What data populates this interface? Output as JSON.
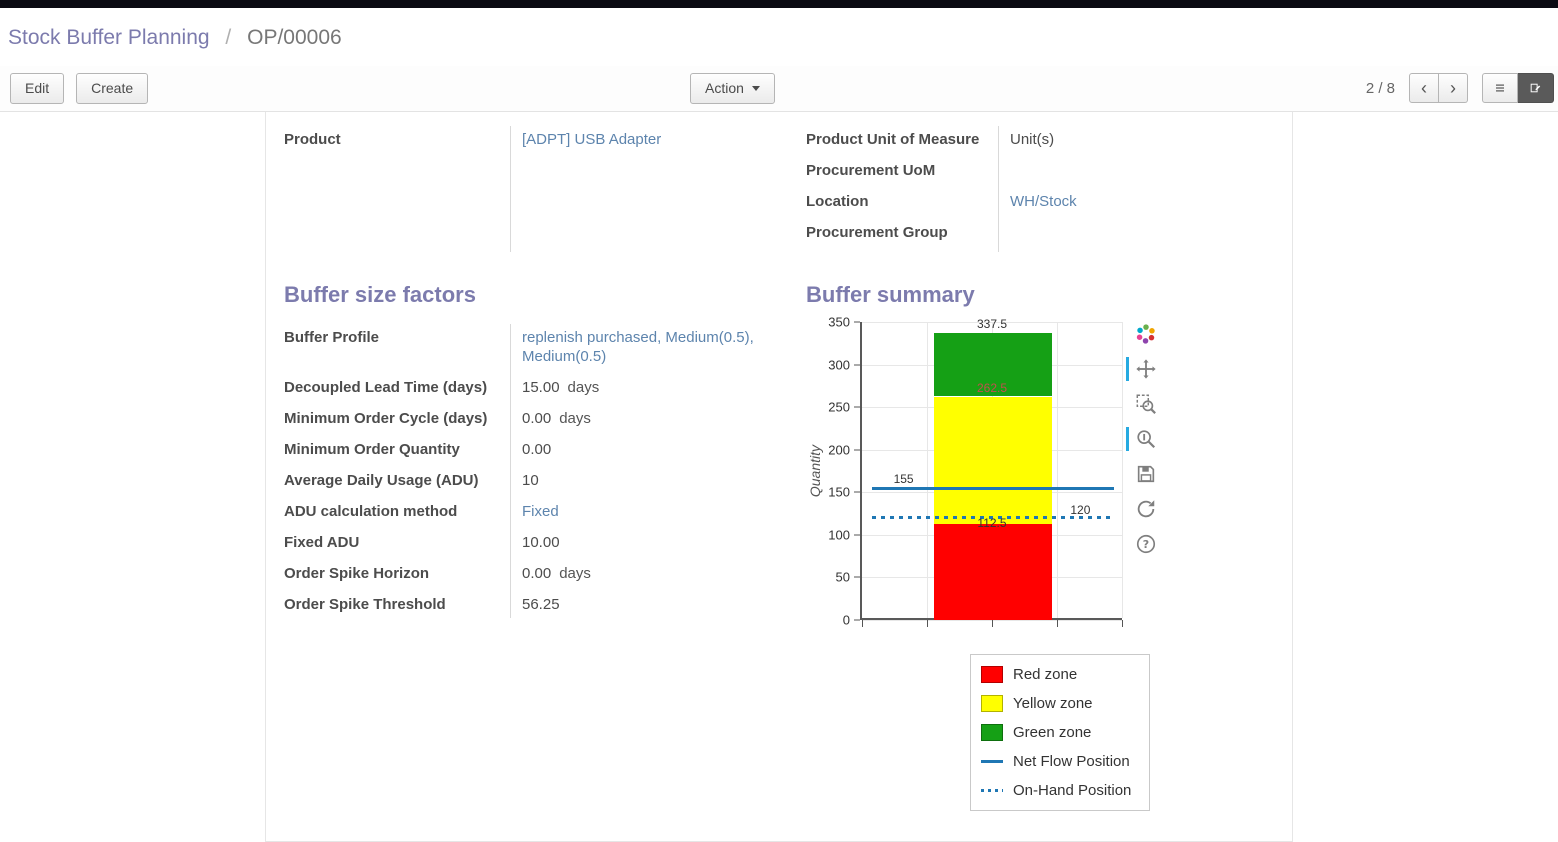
{
  "theme": {
    "heading_color": "#7c7bad",
    "link_color": "#5d84ad",
    "topbar_color": "#0a0a12",
    "active_tool_color": "#26aae1",
    "accent_blue": "#1f77b4"
  },
  "breadcrumb": {
    "parent": "Stock Buffer Planning",
    "separator": "/",
    "current": "OP/00006"
  },
  "control_bar": {
    "edit_label": "Edit",
    "create_label": "Create",
    "action_label": "Action",
    "pager_text": "2 / 8",
    "prev_icon": "‹",
    "next_icon": "›"
  },
  "form": {
    "left_group": [
      {
        "label": "Product",
        "value": "[ADPT] USB Adapter",
        "link": true
      }
    ],
    "right_group": [
      {
        "label": "Product Unit of Measure",
        "value": "Unit(s)",
        "link": false
      },
      {
        "label": "Procurement UoM",
        "value": "",
        "link": false
      },
      {
        "label": "Location",
        "value": "WH/Stock",
        "link": true
      },
      {
        "label": "Procurement Group",
        "value": "",
        "link": false
      }
    ]
  },
  "buffer_factors": {
    "title": "Buffer size factors",
    "rows": [
      {
        "label": "Buffer Profile",
        "value": "replenish purchased, Medium(0.5), Medium(0.5)",
        "link": true
      },
      {
        "label": "Decoupled Lead Time (days)",
        "value": "15.00",
        "suffix": "days"
      },
      {
        "label": "Minimum Order Cycle (days)",
        "value": "0.00",
        "suffix": "days"
      },
      {
        "label": "Minimum Order Quantity",
        "value": "0.00"
      },
      {
        "label": "Average Daily Usage (ADU)",
        "value": "10"
      },
      {
        "label": "ADU calculation method",
        "value": "Fixed",
        "link": true
      },
      {
        "label": "Fixed ADU",
        "value": "10.00"
      },
      {
        "label": "Order Spike Horizon",
        "value": "0.00",
        "suffix": "days"
      },
      {
        "label": "Order Spike Threshold",
        "value": "56.25"
      }
    ]
  },
  "buffer_summary": {
    "title": "Buffer summary"
  },
  "chart_data": {
    "type": "bar",
    "title": "Buffer summary",
    "xlabel": "",
    "ylabel": "Quantity",
    "ylim": [
      0,
      350
    ],
    "yticks": [
      0,
      50,
      100,
      150,
      200,
      250,
      300,
      350
    ],
    "grid": true,
    "legend_position": "below-right",
    "zones": [
      {
        "name": "Red zone",
        "from": 0,
        "to": 112.5,
        "color": "#ff0000"
      },
      {
        "name": "Yellow zone",
        "from": 112.5,
        "to": 262.5,
        "color": "#ffff00"
      },
      {
        "name": "Green zone",
        "from": 262.5,
        "to": 337.5,
        "color": "#15a015"
      }
    ],
    "lines": [
      {
        "name": "Net Flow Position",
        "value": 155,
        "style": "solid",
        "color": "#1f77b4"
      },
      {
        "name": "On-Hand Position",
        "value": 120,
        "style": "dotted",
        "color": "#1f77b4"
      }
    ],
    "annotations": [
      {
        "text": "337.5",
        "value": 337.5,
        "x_pct": 50,
        "dy": -16,
        "color": "#333333"
      },
      {
        "text": "262.5",
        "value": 262.5,
        "x_pct": 50,
        "dy": -16,
        "color": "#c0504d"
      },
      {
        "text": "155",
        "value": 155,
        "x_pct": 16,
        "dy": -16,
        "color": "#333333"
      },
      {
        "text": "112.5",
        "value": 112.5,
        "x_pct": 50,
        "dy": -8,
        "color": "#333333"
      },
      {
        "text": "120",
        "value": 120,
        "x_pct": 84,
        "dy": -15,
        "color": "#333333"
      }
    ],
    "legend": [
      {
        "label": "Red zone",
        "swatch": "fill",
        "color": "#ff0000"
      },
      {
        "label": "Yellow zone",
        "swatch": "fill",
        "color": "#ffff00"
      },
      {
        "label": "Green zone",
        "swatch": "fill",
        "color": "#15a015"
      },
      {
        "label": "Net Flow Position",
        "swatch": "line",
        "color": "#1f77b4"
      },
      {
        "label": "On-Hand Position",
        "swatch": "dotted",
        "color": "#1f77b4"
      }
    ]
  },
  "chart_toolbar": {
    "icons": [
      {
        "name": "bokeh-logo",
        "active": false
      },
      {
        "name": "pan",
        "active": true
      },
      {
        "name": "box-zoom",
        "active": false
      },
      {
        "name": "wheel-zoom",
        "active": true
      },
      {
        "name": "save",
        "active": false
      },
      {
        "name": "reset",
        "active": false
      },
      {
        "name": "help",
        "active": false
      }
    ]
  }
}
